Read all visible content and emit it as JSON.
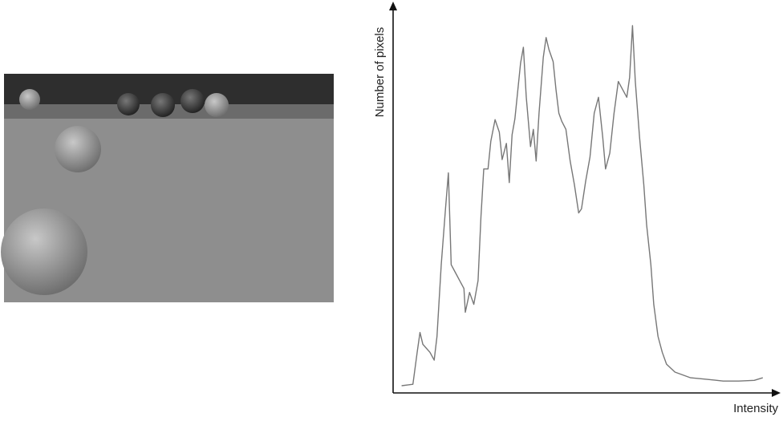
{
  "chart_data": {
    "type": "line",
    "xlabel": "Intensity",
    "ylabel": "Number of pixels",
    "x": [
      0,
      8,
      11,
      13,
      15,
      20,
      23,
      25,
      28,
      31,
      33,
      35,
      38,
      41,
      44,
      45,
      48,
      51,
      54,
      56,
      58,
      61,
      63,
      66,
      69,
      71,
      74,
      76,
      78,
      80,
      84,
      86,
      88,
      91,
      93,
      95,
      97,
      100,
      102,
      104,
      107,
      109,
      111,
      113,
      116,
      119,
      122,
      125,
      127,
      130,
      133,
      136,
      139,
      142,
      144,
      147,
      150,
      153,
      156,
      159,
      161,
      163,
      165,
      168,
      171,
      173,
      176,
      178,
      181,
      184,
      187,
      193,
      204,
      215,
      227,
      238,
      249,
      255
    ],
    "values": [
      0,
      0.4,
      9.3,
      14.8,
      11.5,
      9.3,
      7.1,
      13.7,
      33.6,
      49.1,
      59.1,
      33.6,
      31.4,
      29.2,
      27.0,
      20.4,
      25.9,
      22.6,
      29.2,
      46.9,
      60.2,
      60.2,
      67.9,
      73.9,
      70.4,
      62.8,
      67.3,
      56.4,
      69.7,
      74.1,
      89.6,
      94.0,
      80.1,
      66.4,
      71.2,
      62.4,
      75.7,
      91.2,
      96.7,
      93.4,
      90.0,
      82.3,
      75.7,
      73.5,
      71.2,
      62.4,
      55.8,
      48.0,
      49.1,
      56.9,
      63.5,
      75.7,
      80.1,
      69.0,
      60.2,
      64.6,
      75.7,
      84.5,
      82.3,
      80.1,
      85.6,
      100,
      84.5,
      69.0,
      55.8,
      44.7,
      33.6,
      22.6,
      13.7,
      9.3,
      6.0,
      3.8,
      2.2,
      1.8,
      1.3,
      1.3,
      1.5,
      2.2
    ],
    "color": "#777777",
    "xlim": [
      -6,
      267
    ],
    "ylim": [
      -2,
      106
    ]
  }
}
